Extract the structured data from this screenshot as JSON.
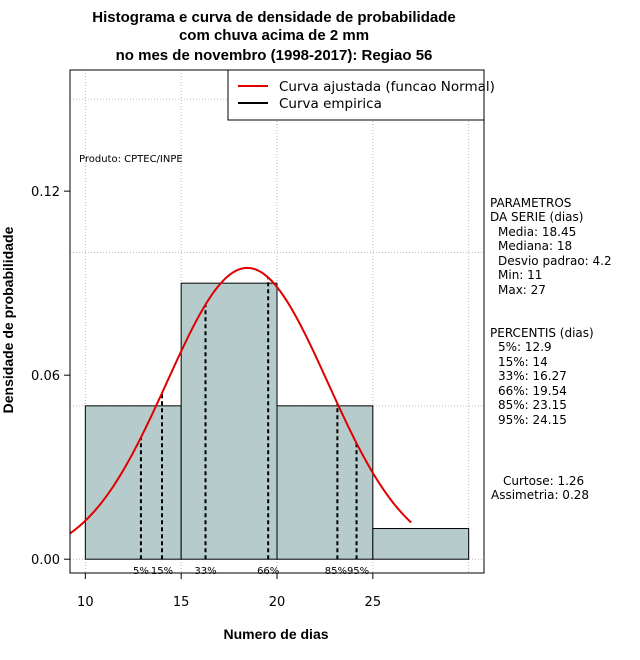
{
  "chart_data": {
    "type": "bar",
    "title": [
      "Histograma e curva de densidade de probabilidade",
      "com chuva acima de 2 mm",
      "no mes de novembro (1998-2017): Regiao 56"
    ],
    "xlabel": "Numero de dias",
    "ylabel": "Densidade de probabilidade",
    "xlim": [
      9.2,
      30.8
    ],
    "ylim": [
      -0.0045,
      0.1595
    ],
    "xticks": [
      10,
      15,
      20,
      25
    ],
    "yticks": [
      0.0,
      0.06,
      0.12
    ],
    "ytick_labels": [
      "0.00",
      "0.06",
      "0.12"
    ],
    "grid_x": [
      10,
      15,
      20,
      25,
      30
    ],
    "grid_y": [
      0.0,
      0.05,
      0.1,
      0.15
    ],
    "bins": [
      {
        "x0": 10,
        "x1": 15,
        "density": 0.05
      },
      {
        "x0": 15,
        "x1": 20,
        "density": 0.09
      },
      {
        "x0": 20,
        "x1": 25,
        "density": 0.05
      },
      {
        "x0": 25,
        "x1": 30,
        "density": 0.01
      }
    ],
    "normal_fit": {
      "mean": 18.45,
      "sd": 4.2,
      "x_range": [
        9.2,
        27
      ]
    },
    "percentile_lines": [
      {
        "label": "5%",
        "x": 12.9
      },
      {
        "label": "15%",
        "x": 14
      },
      {
        "label": "33%",
        "x": 16.27
      },
      {
        "label": "66%",
        "x": 19.54
      },
      {
        "label": "85%",
        "x": 23.15
      },
      {
        "label": "95%",
        "x": 24.15
      }
    ],
    "percentile_labels": [
      "5%",
      "15%",
      "33%",
      "66%",
      "85%95%"
    ],
    "legend": {
      "placement": "top-right",
      "entries": [
        {
          "label": "Curva ajustada (funcao Normal)",
          "color": "#e00000"
        },
        {
          "label": "Curva empirica",
          "color": "#000000"
        }
      ]
    },
    "colors": {
      "bar_fill": "#b6cccc",
      "curve": "#e00000",
      "grid": "#bbbbbb"
    }
  },
  "annotations": {
    "produto": "Produto: CPTEC/INPE"
  },
  "side_panel": {
    "parametros_title": [
      "PARAMETROS",
      "DA SERIE (dias)"
    ],
    "parametros": [
      "Media: 18.45",
      "Mediana: 18",
      "Desvio padrao: 4.2",
      "Min: 11",
      "Max: 27"
    ],
    "percentis_title": "PERCENTIS (dias)",
    "percentis": [
      "5%: 12.9",
      "15%: 14",
      "33%: 16.27",
      "66%: 19.54",
      "85%: 23.15",
      "95%: 24.15"
    ],
    "curtose": "Curtose: 1.26",
    "assimetria": "Assimetria: 0.28"
  }
}
